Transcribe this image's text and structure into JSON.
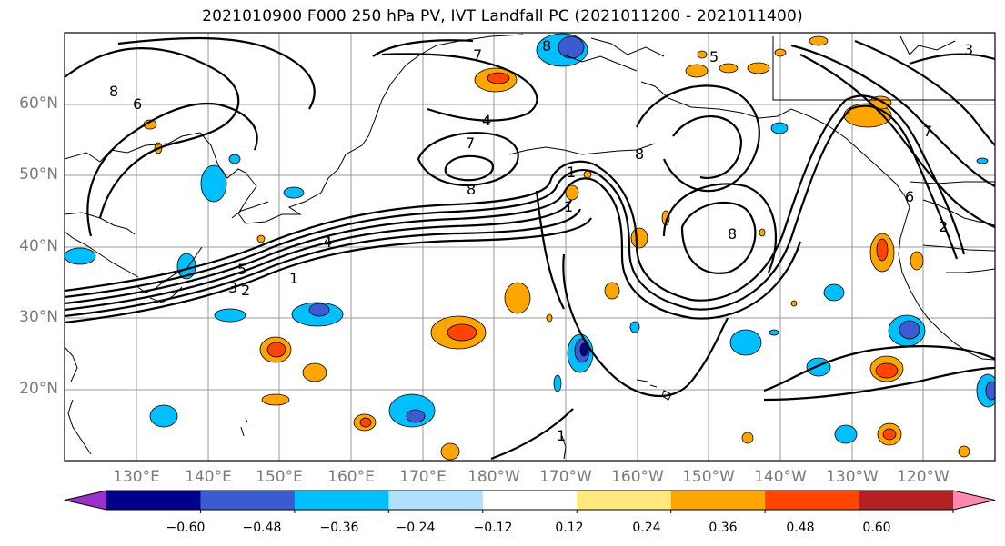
{
  "title": "2021010900 F000 250 hPa PV, IVT Landfall PC (2021011200 - 2021011400)",
  "lat_labels": [
    "60°N",
    "50°N",
    "40°N",
    "30°N",
    "20°N"
  ],
  "lon_labels": [
    "130°E",
    "140°E",
    "150°E",
    "160°E",
    "170°E",
    "180°W",
    "170°W",
    "160°W",
    "150°W",
    "140°W",
    "130°W",
    "120°W"
  ],
  "colorbar": {
    "tick_labels": [
      "−0.60",
      "−0.48",
      "−0.36",
      "−0.24",
      "−0.12",
      "0.12",
      "0.24",
      "0.36",
      "0.48",
      "0.60"
    ],
    "colors": [
      "#9932cc",
      "#00008b",
      "#3a5bd1",
      "#00bfff",
      "#b0e0ff",
      "#ffffff",
      "#ffe87c",
      "#ffa500",
      "#ff4500",
      "#b22222",
      "#ff88b0"
    ]
  },
  "contour_labels": [
    "8",
    "7",
    "6",
    "5",
    "4",
    "3",
    "2",
    "1",
    "7",
    "8",
    "1",
    "8",
    "8",
    "6",
    "8",
    "7",
    "1",
    "5",
    "4",
    "3",
    "2",
    "1"
  ],
  "shaded_colors": {
    "neg_light": "#b0e0ff",
    "neg": "#00bfff",
    "neg_strong": "#3a5bd1",
    "neg_max": "#00008b",
    "pos_light": "#ffe87c",
    "pos": "#ffa500",
    "pos_strong": "#ff4500"
  }
}
